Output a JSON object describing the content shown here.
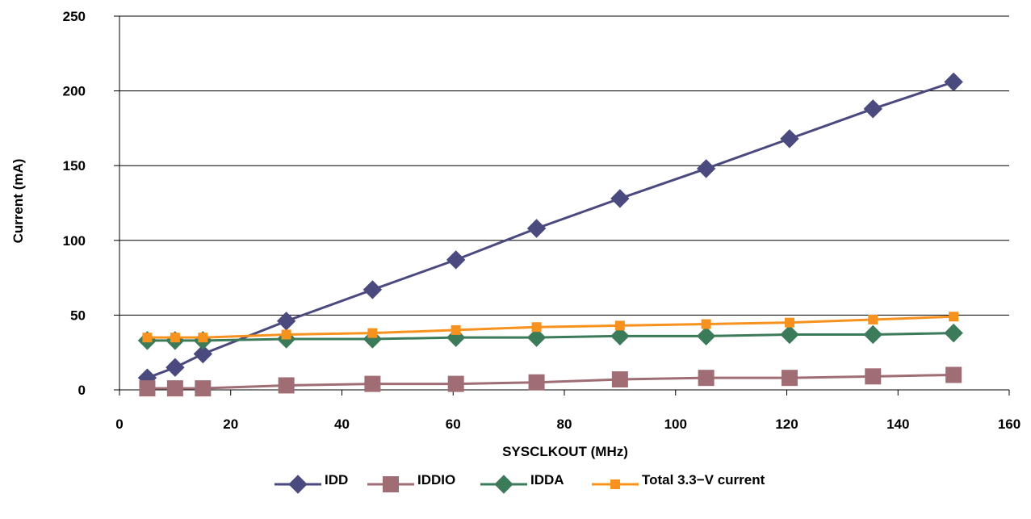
{
  "chart_data": {
    "type": "line",
    "xlabel": "SYSCLKOUT (MHz)",
    "ylabel": "Current (mA)",
    "xlim": [
      0,
      160
    ],
    "ylim": [
      0,
      250
    ],
    "xticks": [
      "0",
      "20",
      "40",
      "60",
      "80",
      "100",
      "120",
      "140",
      "160"
    ],
    "yticks": [
      "0",
      "50",
      "100",
      "150",
      "200",
      "250"
    ],
    "grid": "horizontal",
    "legend_position": "bottom",
    "x": [
      5,
      10,
      15,
      30,
      45.5,
      60.5,
      75,
      90,
      105.5,
      120.5,
      135.5,
      150
    ],
    "series": [
      {
        "name": "IDD",
        "color": "#4b4a7e",
        "marker": "diamond",
        "values": [
          8,
          15,
          24,
          46,
          67,
          87,
          108,
          128,
          148,
          168,
          188,
          206
        ]
      },
      {
        "name": "IDDIO",
        "color": "#a16d75",
        "marker": "square-large",
        "values": [
          1,
          1,
          1,
          3,
          4,
          4,
          5,
          7,
          8,
          8,
          9,
          10
        ]
      },
      {
        "name": "IDDA",
        "color": "#3c7b5a",
        "marker": "diamond",
        "values": [
          33,
          33,
          33,
          34,
          34,
          35,
          35,
          36,
          36,
          37,
          37,
          38
        ]
      },
      {
        "name": "Total 3.3−V current",
        "color": "#f7921e",
        "marker": "square-small",
        "values": [
          35,
          35,
          35,
          37,
          38,
          40,
          42,
          43,
          44,
          45,
          47,
          49
        ]
      }
    ]
  }
}
